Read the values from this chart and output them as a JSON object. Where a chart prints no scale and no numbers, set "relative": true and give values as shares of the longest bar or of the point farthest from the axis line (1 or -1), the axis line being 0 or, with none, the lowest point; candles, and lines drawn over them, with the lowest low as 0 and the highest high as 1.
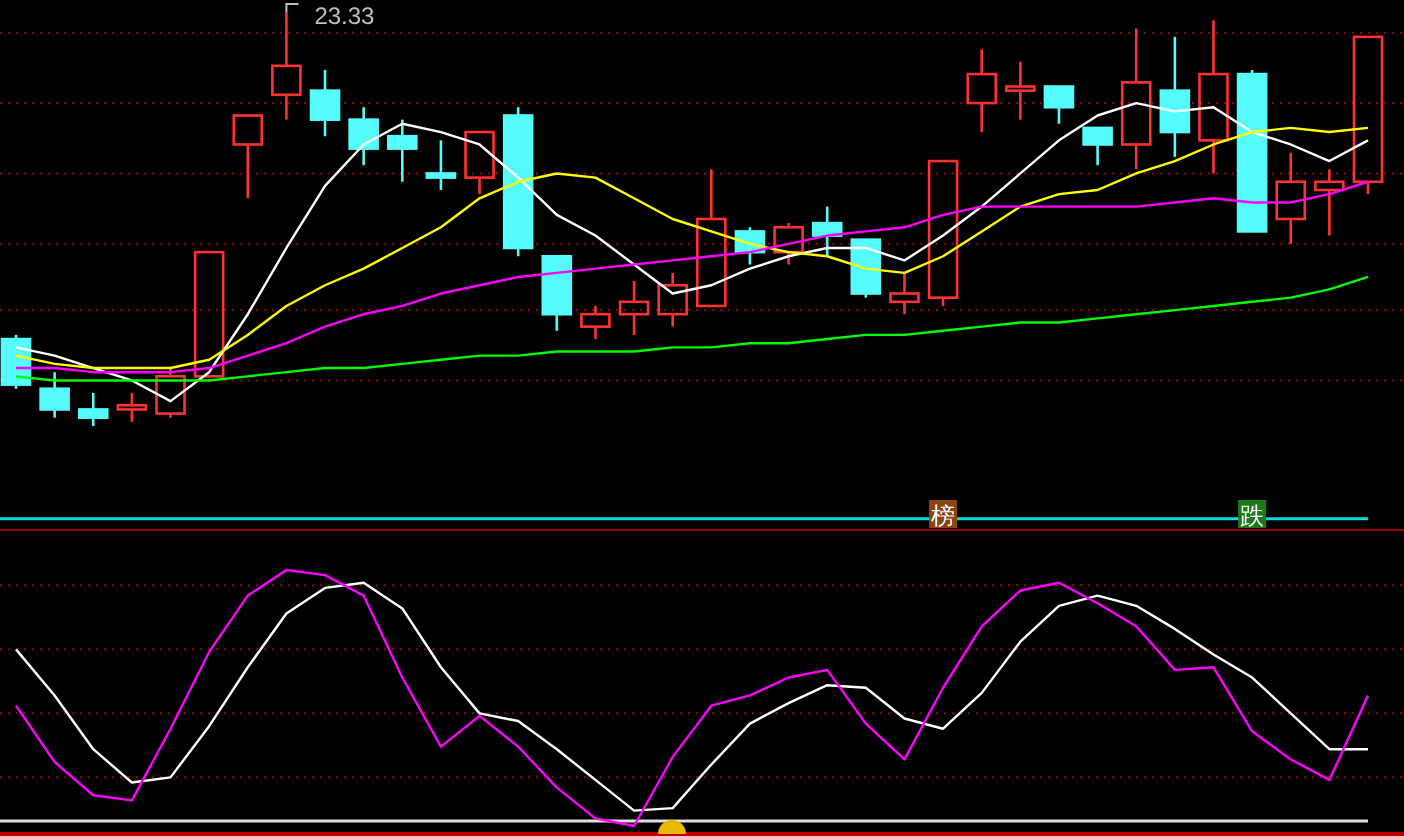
{
  "chart_data": [
    {
      "type": "candlestick",
      "relative": true,
      "ref_lines": [
        {
          "axis": "y",
          "value": 0.95,
          "color": "#a00000",
          "line_style": "dotted"
        },
        {
          "axis": "y",
          "value": 0.78,
          "color": "#a00000",
          "line_style": "dotted"
        },
        {
          "axis": "y",
          "value": 0.61,
          "color": "#a00000",
          "line_style": "dotted"
        },
        {
          "axis": "y",
          "value": 0.44,
          "color": "#a00000",
          "line_style": "dotted"
        },
        {
          "axis": "y",
          "value": 0.28,
          "color": "#a00000",
          "line_style": "dotted"
        },
        {
          "axis": "y",
          "value": 0.11,
          "color": "#a00000",
          "line_style": "dotted"
        }
      ],
      "categories": [
        null,
        null,
        null,
        null,
        null,
        null,
        null,
        null,
        null,
        null,
        null,
        null,
        null,
        null,
        null,
        null,
        null,
        null,
        null,
        null,
        null,
        null,
        null,
        null,
        null,
        null,
        null,
        null,
        null,
        null,
        null,
        null,
        null,
        null,
        null,
        null
      ],
      "ohlc": [
        [
          0.21,
          0.22,
          0.09,
          0.1
        ],
        [
          0.09,
          0.13,
          0.02,
          0.04
        ],
        [
          0.04,
          0.08,
          0,
          0.02
        ],
        [
          0.04,
          0.08,
          0.01,
          0.05
        ],
        [
          0.03,
          0.14,
          0.02,
          0.12
        ],
        [
          0.12,
          0.42,
          0.12,
          0.42
        ],
        [
          0.68,
          0.75,
          0.55,
          0.75
        ],
        [
          0.8,
          1,
          0.74,
          0.87
        ],
        [
          0.81,
          0.86,
          0.7,
          0.74
        ],
        [
          0.74,
          0.77,
          0.63,
          0.67
        ],
        [
          0.7,
          0.74,
          0.59,
          0.67
        ],
        [
          0.61,
          0.69,
          0.57,
          0.6
        ],
        [
          0.6,
          0.71,
          0.56,
          0.71
        ],
        [
          0.75,
          0.77,
          0.41,
          0.43
        ],
        [
          0.41,
          0.41,
          0.23,
          0.27
        ],
        [
          0.24,
          0.29,
          0.21,
          0.27
        ],
        [
          0.27,
          0.35,
          0.22,
          0.3
        ],
        [
          0.27,
          0.37,
          0.24,
          0.34
        ],
        [
          0.29,
          0.62,
          0.29,
          0.5
        ],
        [
          0.47,
          0.48,
          0.39,
          0.42
        ],
        [
          0.42,
          0.49,
          0.39,
          0.48
        ],
        [
          0.49,
          0.53,
          0.41,
          0.46
        ],
        [
          0.45,
          0.45,
          0.31,
          0.32
        ],
        [
          0.3,
          0.37,
          0.27,
          0.32
        ],
        [
          0.31,
          0.64,
          0.29,
          0.64
        ],
        [
          0.78,
          0.91,
          0.71,
          0.85
        ],
        [
          0.81,
          0.88,
          0.74,
          0.82
        ],
        [
          0.82,
          0.82,
          0.73,
          0.77
        ],
        [
          0.72,
          0.72,
          0.63,
          0.68
        ],
        [
          0.68,
          0.96,
          0.62,
          0.83
        ],
        [
          0.81,
          0.94,
          0.65,
          0.71
        ],
        [
          0.69,
          0.98,
          0.61,
          0.85
        ],
        [
          0.85,
          0.86,
          0.47,
          0.47
        ],
        [
          0.5,
          0.66,
          0.44,
          0.59
        ],
        [
          0.57,
          0.62,
          0.46,
          0.59
        ],
        [
          0.59,
          0.94,
          0.56,
          0.94
        ]
      ],
      "colors": [
        "#54fcfc",
        "#54fcfc",
        "#54fcfc",
        "#ff3232",
        "#ff3232",
        "#ff3232",
        "#ff3232",
        "#ff3232",
        "#54fcfc",
        "#54fcfc",
        "#54fcfc",
        "#54fcfc",
        "#ff3232",
        "#54fcfc",
        "#54fcfc",
        "#ff3232",
        "#ff3232",
        "#ff3232",
        "#ff3232",
        "#54fcfc",
        "#ff3232",
        "#54fcfc",
        "#54fcfc",
        "#ff3232",
        "#ff3232",
        "#ff3232",
        "#ff3232",
        "#54fcfc",
        "#54fcfc",
        "#ff3232",
        "#54fcfc",
        "#ff3232",
        "#54fcfc",
        "#ff3232",
        "#ff3232",
        "#ff3232"
      ],
      "series": [
        {
          "type": "line",
          "color": "#ffffff",
          "values": [
            0.19,
            0.17,
            0.14,
            0.11,
            0.06,
            0.13,
            0.27,
            0.43,
            0.58,
            0.68,
            0.73,
            0.71,
            0.68,
            0.6,
            0.51,
            0.46,
            0.39,
            0.32,
            0.34,
            0.38,
            0.41,
            0.43,
            0.43,
            0.4,
            0.46,
            0.53,
            0.61,
            0.69,
            0.75,
            0.78,
            0.76,
            0.77,
            0.71,
            0.68,
            0.64,
            0.69
          ]
        },
        {
          "type": "line",
          "color": "#ffff00",
          "values": [
            0.17,
            0.15,
            0.14,
            0.14,
            0.14,
            0.16,
            0.22,
            0.29,
            0.34,
            0.38,
            0.43,
            0.48,
            0.55,
            0.59,
            0.61,
            0.6,
            0.55,
            0.5,
            0.47,
            0.44,
            0.42,
            0.41,
            0.38,
            0.37,
            0.41,
            0.47,
            0.53,
            0.56,
            0.57,
            0.61,
            0.64,
            0.68,
            0.71,
            0.72,
            0.71,
            0.72
          ]
        },
        {
          "type": "line",
          "color": "#ff00ff",
          "values": [
            0.14,
            0.14,
            0.13,
            0.13,
            0.13,
            0.14,
            0.17,
            0.2,
            0.24,
            0.27,
            0.29,
            0.32,
            0.34,
            0.36,
            0.37,
            0.38,
            0.39,
            0.4,
            0.41,
            0.42,
            0.44,
            0.46,
            0.47,
            0.48,
            0.51,
            0.53,
            0.53,
            0.53,
            0.53,
            0.53,
            0.54,
            0.55,
            0.54,
            0.54,
            0.56,
            0.59
          ]
        },
        {
          "type": "line",
          "color": "#00ff00",
          "values": [
            0.12,
            0.11,
            0.11,
            0.11,
            0.11,
            0.11,
            0.12,
            0.13,
            0.14,
            0.14,
            0.15,
            0.16,
            0.17,
            0.17,
            0.18,
            0.18,
            0.18,
            0.19,
            0.19,
            0.2,
            0.2,
            0.21,
            0.22,
            0.22,
            0.23,
            0.24,
            0.25,
            0.25,
            0.26,
            0.27,
            0.28,
            0.29,
            0.3,
            0.31,
            0.33,
            0.36
          ]
        }
      ],
      "annotations": [
        "23.33"
      ]
    },
    {
      "type": "line",
      "relative": true,
      "categories": [
        null,
        null,
        null,
        null,
        null,
        null,
        null,
        null,
        null,
        null,
        null,
        null,
        null,
        null,
        null,
        null,
        null,
        null,
        null,
        null,
        null,
        null,
        null,
        null,
        null,
        null,
        null,
        null,
        null,
        null,
        null,
        null,
        null,
        null,
        null,
        null
      ],
      "series": [
        {
          "color": "#ffffff",
          "values": [
            0.69,
            0.51,
            0.3,
            0.17,
            0.19,
            0.39,
            0.62,
            0.83,
            0.93,
            0.95,
            0.85,
            0.62,
            0.44,
            0.41,
            0.3,
            0.18,
            0.06,
            0.07,
            0.24,
            0.4,
            0.48,
            0.55,
            0.54,
            0.42,
            0.38,
            0.52,
            0.72,
            0.86,
            0.9,
            0.86,
            0.77,
            0.67,
            0.58,
            0.44,
            0.3,
            0.3
          ]
        },
        {
          "color": "#ff00ff",
          "values": [
            0.47,
            0.25,
            0.12,
            0.1,
            0.38,
            0.68,
            0.9,
            1,
            0.98,
            0.9,
            0.58,
            0.31,
            0.43,
            0.31,
            0.15,
            0.03,
            0,
            0.27,
            0.47,
            0.51,
            0.58,
            0.61,
            0.4,
            0.26,
            0.54,
            0.78,
            0.92,
            0.95,
            0.87,
            0.78,
            0.61,
            0.62,
            0.37,
            0.26,
            0.18,
            0.51
          ]
        }
      ],
      "ref_lines": [
        {
          "axis": "y",
          "value": 1.2,
          "color": "#00e0e0"
        },
        {
          "axis": "y",
          "value": 0.02,
          "color": "#e0e0e0"
        },
        {
          "axis": "y",
          "value": 0.94,
          "color": "#a00000",
          "line_style": "dotted"
        },
        {
          "axis": "y",
          "value": 0.69,
          "color": "#a00000",
          "line_style": "dotted"
        },
        {
          "axis": "y",
          "value": 0.44,
          "color": "#a00000",
          "line_style": "dotted"
        },
        {
          "axis": "y",
          "value": 0.19,
          "color": "#a00000",
          "line_style": "dotted"
        }
      ],
      "annotations": [
        "榜",
        "跌"
      ]
    }
  ]
}
